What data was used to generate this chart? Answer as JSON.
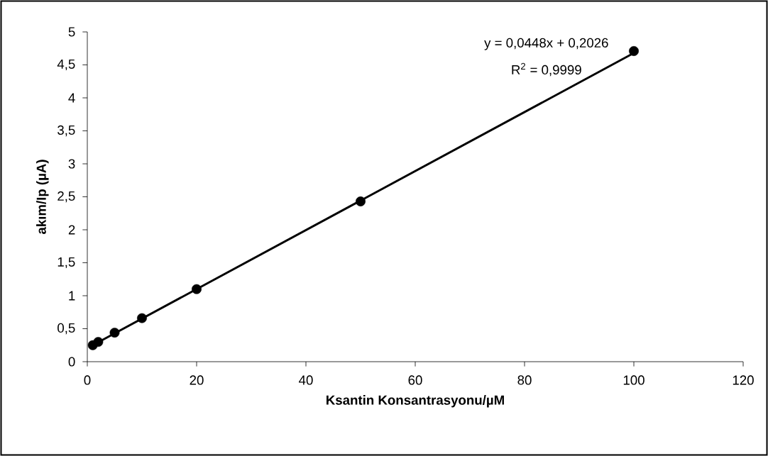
{
  "chart_data": {
    "type": "scatter",
    "xlabel": "Ksantin Konsantrasyonu/µM",
    "ylabel": "akım/Ip (µA)",
    "annotations": [
      "y = 0,0448x + 0,2026",
      "R$^{2}$ = 0,9999"
    ],
    "xlim": [
      0,
      120
    ],
    "ylim": [
      0,
      5
    ],
    "xticks": [
      0,
      20,
      40,
      60,
      80,
      100,
      120
    ],
    "yticks": [
      0,
      {
        "value": 0.5,
        "label": "0,5"
      },
      1,
      {
        "value": 1.5,
        "label": "1,5"
      },
      2,
      {
        "value": 2.5,
        "label": "2,5"
      },
      3,
      {
        "value": 3.5,
        "label": "3,5"
      },
      4,
      {
        "value": 4.5,
        "label": "4,5"
      },
      5
    ],
    "series": [
      {
        "type": "line",
        "color": "#000000",
        "marker": "none",
        "line_style": "solid",
        "x": [
          1,
          100
        ],
        "values": [
          0.25,
          4.68
        ]
      },
      {
        "color": "#000000",
        "marker": "circle",
        "x": [
          1,
          2,
          5,
          10,
          20,
          50,
          100
        ],
        "values": [
          0.25,
          0.3,
          0.44,
          0.66,
          1.1,
          2.43,
          4.71
        ]
      }
    ]
  }
}
